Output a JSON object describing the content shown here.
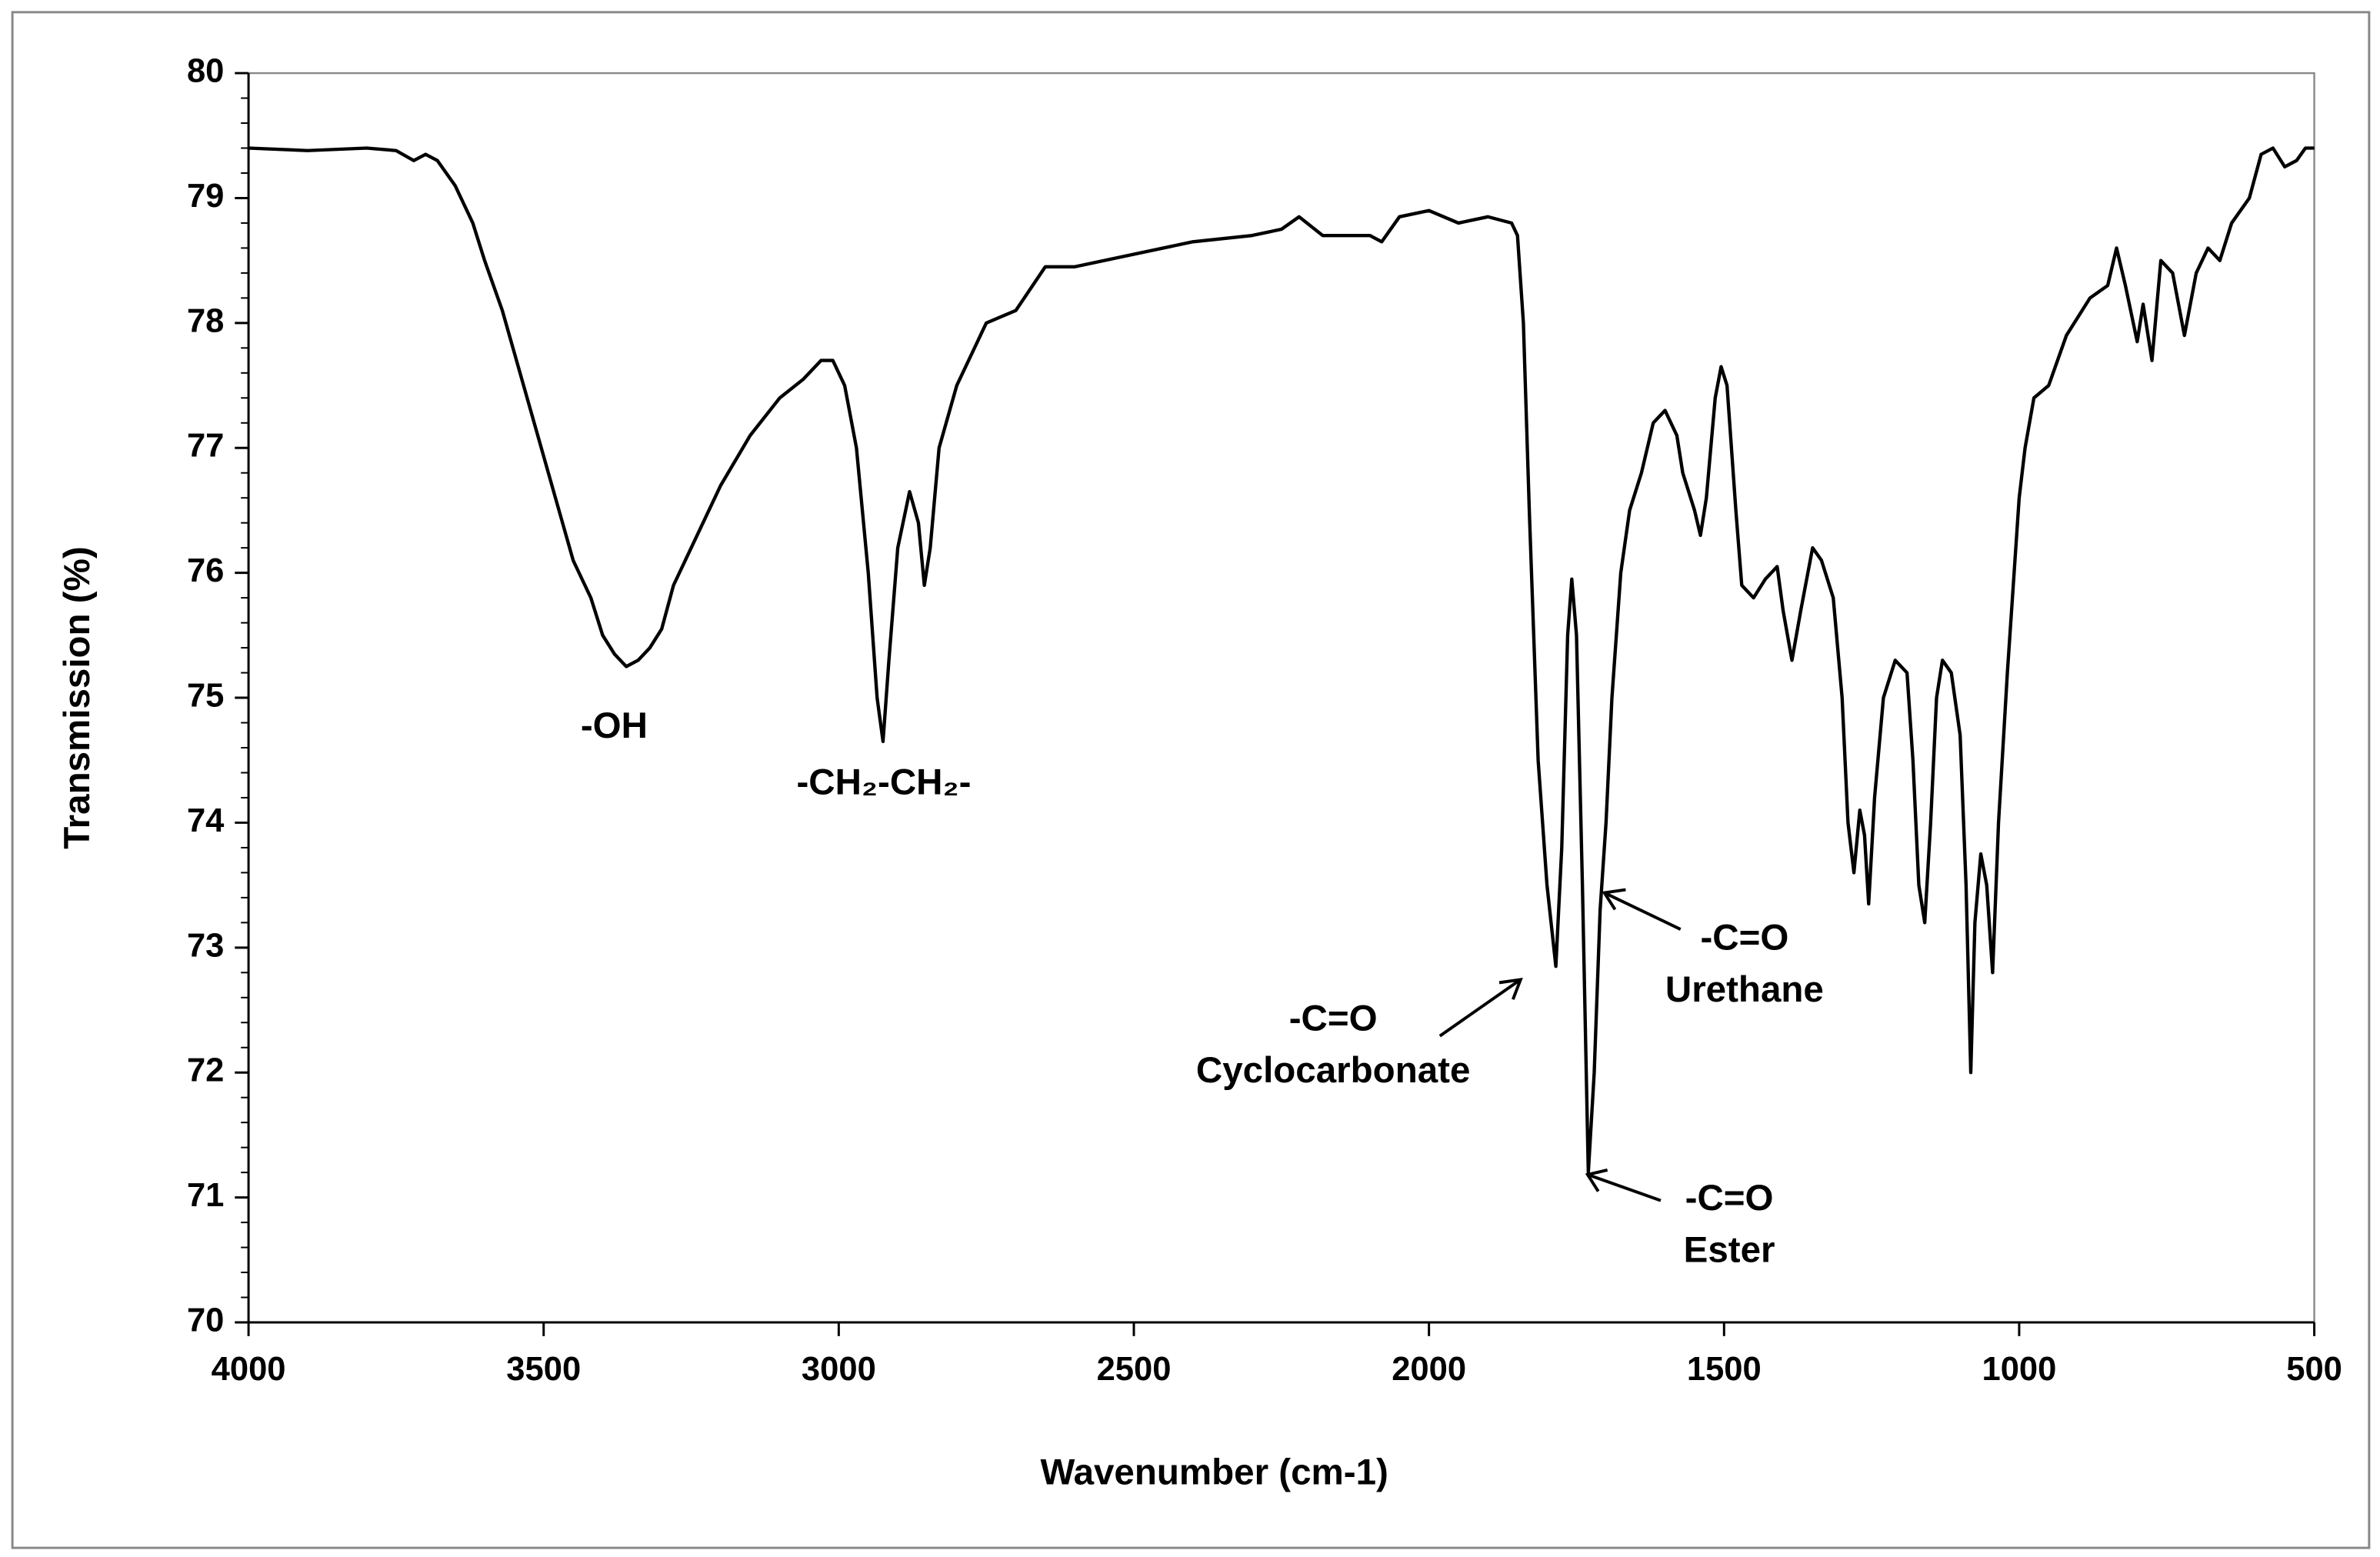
{
  "chart_data": {
    "type": "line",
    "xlabel": "Wavenumber (cm-1)",
    "ylabel": "Transmission (%)",
    "xlim": [
      4000,
      500
    ],
    "xticks": [
      4000,
      3500,
      3000,
      2500,
      2000,
      1500,
      1000,
      500
    ],
    "ylim": [
      70,
      80
    ],
    "yticks": [
      70,
      71,
      72,
      73,
      74,
      75,
      76,
      77,
      78,
      79,
      80
    ],
    "color": "#000000",
    "x": [
      4000,
      3900,
      3800,
      3750,
      3720,
      3700,
      3680,
      3650,
      3620,
      3600,
      3570,
      3540,
      3510,
      3480,
      3450,
      3420,
      3400,
      3380,
      3360,
      3340,
      3320,
      3300,
      3280,
      3260,
      3230,
      3200,
      3150,
      3100,
      3060,
      3030,
      3010,
      2990,
      2970,
      2950,
      2935,
      2925,
      2915,
      2900,
      2880,
      2865,
      2855,
      2845,
      2830,
      2800,
      2750,
      2700,
      2650,
      2600,
      2500,
      2400,
      2300,
      2250,
      2220,
      2180,
      2100,
      2080,
      2050,
      2000,
      1950,
      1900,
      1860,
      1850,
      1840,
      1830,
      1815,
      1800,
      1785,
      1775,
      1765,
      1758,
      1750,
      1740,
      1730,
      1720,
      1710,
      1700,
      1690,
      1675,
      1660,
      1640,
      1620,
      1600,
      1580,
      1570,
      1550,
      1540,
      1530,
      1515,
      1505,
      1495,
      1480,
      1470,
      1450,
      1430,
      1410,
      1400,
      1385,
      1370,
      1350,
      1335,
      1315,
      1300,
      1290,
      1280,
      1270,
      1262,
      1255,
      1245,
      1230,
      1210,
      1190,
      1180,
      1170,
      1160,
      1150,
      1140,
      1130,
      1115,
      1100,
      1090,
      1082,
      1075,
      1065,
      1055,
      1045,
      1035,
      1020,
      1000,
      990,
      975,
      950,
      920,
      880,
      850,
      835,
      820,
      800,
      790,
      775,
      760,
      740,
      720,
      700,
      680,
      660,
      640,
      610,
      590,
      570,
      550,
      530,
      515,
      500
    ],
    "values": [
      79.4,
      79.38,
      79.4,
      79.38,
      79.3,
      79.35,
      79.3,
      79.1,
      78.8,
      78.5,
      78.1,
      77.6,
      77.1,
      76.6,
      76.1,
      75.8,
      75.5,
      75.35,
      75.25,
      75.3,
      75.4,
      75.55,
      75.9,
      76.1,
      76.4,
      76.7,
      77.1,
      77.4,
      77.55,
      77.7,
      77.7,
      77.5,
      77.0,
      76.0,
      75.0,
      74.65,
      75.3,
      76.2,
      76.65,
      76.4,
      75.9,
      76.2,
      77.0,
      77.5,
      78.0,
      78.1,
      78.45,
      78.45,
      78.55,
      78.65,
      78.7,
      78.75,
      78.85,
      78.7,
      78.7,
      78.65,
      78.85,
      78.9,
      78.8,
      78.85,
      78.8,
      78.7,
      78.0,
      76.5,
      74.5,
      73.5,
      72.85,
      73.8,
      75.5,
      75.95,
      75.5,
      73.5,
      71.2,
      72.0,
      73.3,
      74.0,
      75.0,
      76.0,
      76.5,
      76.8,
      77.2,
      77.3,
      77.1,
      76.8,
      76.5,
      76.3,
      76.6,
      77.4,
      77.65,
      77.5,
      76.5,
      75.9,
      75.8,
      75.95,
      76.05,
      75.7,
      75.3,
      75.7,
      76.2,
      76.1,
      75.8,
      75.0,
      74.0,
      73.6,
      74.1,
      73.9,
      73.35,
      74.2,
      75.0,
      75.3,
      75.2,
      74.5,
      73.5,
      73.2,
      74.0,
      75.0,
      75.3,
      75.2,
      74.7,
      73.5,
      72.0,
      73.2,
      73.75,
      73.5,
      72.8,
      74.0,
      75.2,
      76.6,
      77.0,
      77.4,
      77.5,
      77.9,
      78.2,
      78.3,
      78.6,
      78.3,
      77.85,
      78.15,
      77.7,
      78.5,
      78.4,
      77.9,
      78.4,
      78.6,
      78.5,
      78.8,
      79.0,
      79.35,
      79.4,
      79.25,
      79.3,
      79.4,
      79.4
    ],
    "annotations": [
      {
        "lines": [
          "-OH"
        ]
      },
      {
        "lines": [
          "-CH₂-CH₂-"
        ]
      },
      {
        "lines": [
          "-C=O",
          "Cyclocarbonate"
        ]
      },
      {
        "lines": [
          "-C=O",
          "Urethane"
        ]
      },
      {
        "lines": [
          "-C=O",
          "Ester"
        ]
      }
    ]
  }
}
